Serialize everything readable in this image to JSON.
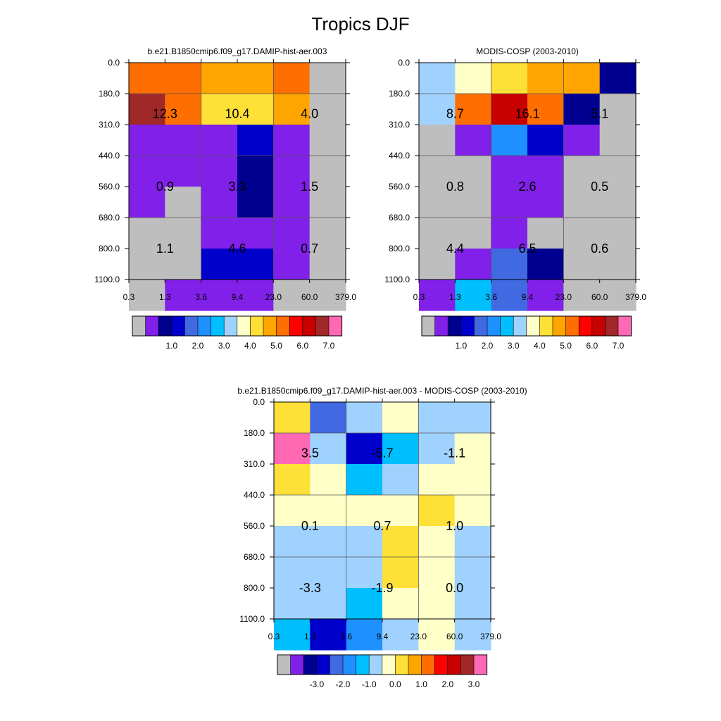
{
  "figure": {
    "title": "Tropics DJF"
  },
  "chart_data": [
    {
      "type": "heatmap",
      "title": "b.e21.B1850cmip6.f09_g17.DAMIP-hist-aer.003",
      "x_ticks": [
        "0.3",
        "1.3",
        "3.6",
        "9.4",
        "23.0",
        "60.0",
        "379.0"
      ],
      "y_ticks": [
        "0.0",
        "180.0",
        "310.0",
        "440.0",
        "560.0",
        "680.0",
        "800.0",
        "1100.0"
      ],
      "cells": [
        [
          11,
          11,
          10,
          10,
          11,
          0
        ],
        [
          14,
          11,
          9,
          9,
          10,
          0
        ],
        [
          1,
          1,
          1,
          3,
          1,
          0
        ],
        [
          1,
          1,
          1,
          2,
          1,
          0
        ],
        [
          1,
          0,
          1,
          2,
          1,
          0
        ],
        [
          0,
          0,
          1,
          1,
          1,
          0
        ],
        [
          0,
          0,
          3,
          3,
          1,
          0
        ],
        [
          0,
          1,
          1,
          1,
          0,
          0
        ]
      ],
      "box_totals": [
        [
          "12.3",
          "10.4",
          "4.0"
        ],
        [
          "0.9",
          "3.3",
          "1.5"
        ],
        [
          "1.1",
          "4.6",
          "0.7"
        ]
      ],
      "colorbar": {
        "labels": [
          "1.0",
          "2.0",
          "3.0",
          "4.0",
          "5.0",
          "6.0",
          "7.0"
        ]
      }
    },
    {
      "type": "heatmap",
      "title": "MODIS-COSP (2003-2010)",
      "x_ticks": [
        "0.3",
        "1.3",
        "3.6",
        "9.4",
        "23.0",
        "60.0",
        "379.0"
      ],
      "y_ticks": [
        "0.0",
        "180.0",
        "310.0",
        "440.0",
        "560.0",
        "680.0",
        "800.0",
        "1100.0"
      ],
      "cells": [
        [
          7,
          8,
          9,
          10,
          10,
          2
        ],
        [
          7,
          11,
          13,
          11,
          2,
          0
        ],
        [
          0,
          1,
          5,
          3,
          1,
          0
        ],
        [
          0,
          0,
          1,
          1,
          0,
          0
        ],
        [
          0,
          0,
          1,
          1,
          0,
          0
        ],
        [
          0,
          0,
          1,
          0,
          0,
          0
        ],
        [
          0,
          1,
          4,
          2,
          0,
          0
        ],
        [
          1,
          6,
          4,
          1,
          0,
          0
        ]
      ],
      "box_totals": [
        [
          "8.7",
          "16.1",
          "5.1"
        ],
        [
          "0.8",
          "2.6",
          "0.5"
        ],
        [
          "4.4",
          "6.5",
          "0.6"
        ]
      ],
      "colorbar": {
        "labels": [
          "1.0",
          "2.0",
          "3.0",
          "4.0",
          "5.0",
          "6.0",
          "7.0"
        ]
      }
    },
    {
      "type": "heatmap",
      "title": "b.e21.B1850cmip6.f09_g17.DAMIP-hist-aer.003 - MODIS-COSP (2003-2010)",
      "x_ticks": [
        "0.3",
        "1.3",
        "3.6",
        "9.4",
        "23.0",
        "60.0",
        "379.0"
      ],
      "y_ticks": [
        "0.0",
        "180.0",
        "310.0",
        "440.0",
        "560.0",
        "680.0",
        "800.0",
        "1100.0"
      ],
      "cells": [
        [
          9,
          4,
          7,
          8,
          7,
          7
        ],
        [
          15,
          7,
          3,
          6,
          7,
          8
        ],
        [
          9,
          8,
          6,
          7,
          8,
          8
        ],
        [
          8,
          8,
          8,
          8,
          9,
          8
        ],
        [
          7,
          7,
          7,
          9,
          8,
          7
        ],
        [
          7,
          7,
          7,
          9,
          8,
          7
        ],
        [
          7,
          7,
          6,
          8,
          8,
          7
        ],
        [
          6,
          3,
          5,
          7,
          8,
          7
        ]
      ],
      "box_totals": [
        [
          "3.5",
          "-5.7",
          "-1.1"
        ],
        [
          "0.1",
          "0.7",
          "1.0"
        ],
        [
          "-3.3",
          "-1.9",
          "0.0"
        ]
      ],
      "colorbar": {
        "labels": [
          "-3.0",
          "-2.0",
          "-1.0",
          "0.0",
          "1.0",
          "2.0",
          "3.0"
        ]
      }
    }
  ],
  "colors": {
    "palette": [
      "#bebebe",
      "#8020e8",
      "#000090",
      "#0000cd",
      "#4169e1",
      "#1e90ff",
      "#00bfff",
      "#a0d2ff",
      "#ffffc8",
      "#ffe036",
      "#ffa500",
      "#ff6e00",
      "#ff0000",
      "#c80000",
      "#a02828",
      "#ff69b4"
    ],
    "box_line": "#555555"
  }
}
